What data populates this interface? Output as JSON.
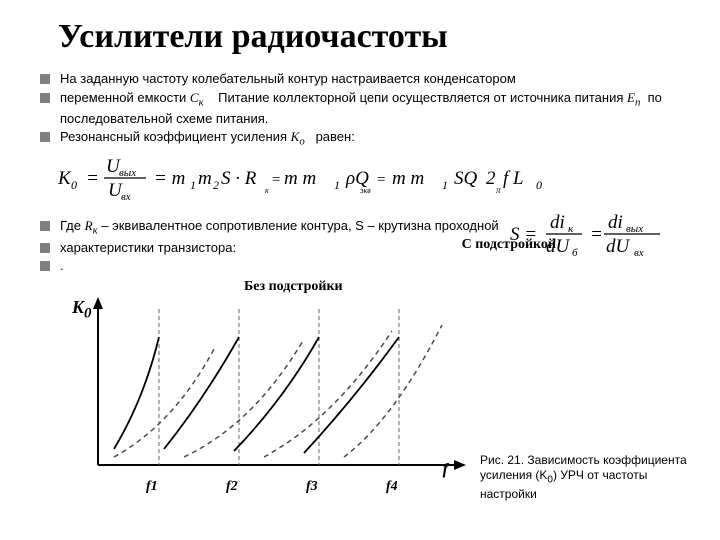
{
  "title": "Усилители радиочастоты",
  "bullets": {
    "b1": "На заданную частоту колебательный контур настраивается конденсатором",
    "b2a": "переменной емкости ",
    "b2b": "Питание коллекторной цепи осуществляется от источника питания ",
    "b2c": "по последовательной схеме питания.",
    "b3a": "Резонансный коэффициент усиления ",
    "b3b": "равен:",
    "b4a": "Где ",
    "b4b": " – эквивалентное сопротивление контура, S – крутизна проходной",
    "b5": "характеристики транзистора:",
    "b6": "."
  },
  "symbols": {
    "ck": "C",
    "cksub": "к",
    "ep": "E",
    "epsub": "п",
    "ko": "K",
    "kosub": "о",
    "rk": "R",
    "rksub": "к"
  },
  "chart": {
    "label_top": "Без подстройки",
    "label_bottom": "С подстройкой",
    "ylabel": "K",
    "ylabel_sub": "0",
    "xlabel": "f",
    "xticks": [
      "f1",
      "f2",
      "f3",
      "f4"
    ],
    "xtick_pos": [
      110,
      190,
      270,
      350
    ],
    "axis_color": "#000000",
    "dashed_color": "#4a4a4a",
    "solid_color": "#000000",
    "vline_color": "#666666",
    "curves_solid": [
      "M 70 170 Q 100 120 115 58",
      "M 120 170 Q 160 120 195 58",
      "M 190 172 Q 240 120 275 58",
      "M 260 174 Q 310 120 355 58"
    ],
    "curves_dashed": [
      "M 70 178 Q 130 145 170 70",
      "M 140 178 Q 210 145 260 60",
      "M 220 178 Q 290 140 348 52",
      "M 300 178 Q 350 140 398 46"
    ],
    "vlines_x": [
      115,
      195,
      275,
      355
    ],
    "vline_y0": 30,
    "vline_y1": 186,
    "xaxis_y": 186,
    "yaxis_x": 54,
    "xrange": [
      54,
      420
    ],
    "yrange": [
      20,
      186
    ]
  },
  "caption": {
    "line1": "Рис. 21. Зависимость коэффициента",
    "line2a": "усиления (K",
    "line2b": "0",
    "line2c": ") УРЧ от частоты настройки"
  },
  "colors": {
    "bullet": "#808080",
    "text": "#000000",
    "bg": "#ffffff"
  }
}
